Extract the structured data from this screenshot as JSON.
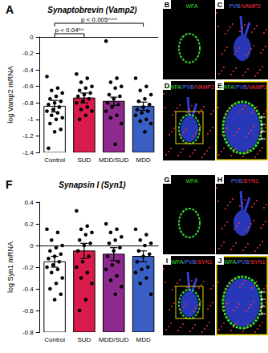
{
  "chart_data": [
    {
      "type": "bar",
      "panel": "A",
      "title": "Synaptobrevin (Vamp2)",
      "y_label": "log Vamp2 mRNA",
      "categories": [
        "Control",
        "SUD",
        "MDD/SUD",
        "MDD"
      ],
      "values": [
        -0.84,
        -0.74,
        -0.78,
        -0.84
      ],
      "errors": [
        0.07,
        0.06,
        0.05,
        0.05
      ],
      "colors": [
        "#ffffff",
        "#d81b4a",
        "#8e2a8e",
        "#3a5fc4"
      ],
      "points": [
        [
          -0.48,
          -0.62,
          -0.65,
          -0.68,
          -0.72,
          -0.75,
          -0.78,
          -0.8,
          -0.82,
          -0.85,
          -0.88,
          -0.9,
          -0.92,
          -0.95,
          -0.98,
          -1.0,
          -1.05,
          -1.12,
          -1.15,
          -1.35
        ],
        [
          -0.45,
          -0.5,
          -0.55,
          -0.6,
          -0.62,
          -0.65,
          -0.68,
          -0.7,
          -0.72,
          -0.75,
          -0.78,
          -0.8,
          -0.85,
          -0.88,
          -0.9,
          -0.95,
          -1.0
        ],
        [
          -0.05,
          -0.5,
          -0.55,
          -0.6,
          -0.62,
          -0.7,
          -0.72,
          -0.75,
          -0.8,
          -0.82,
          -0.85,
          -0.9,
          -0.95,
          -0.98,
          -1.05,
          -1.3
        ],
        [
          -0.5,
          -0.6,
          -0.65,
          -0.7,
          -0.75,
          -0.78,
          -0.82,
          -0.85,
          -0.88,
          -0.9,
          -0.92,
          -0.95,
          -1.0,
          -1.02,
          -1.05,
          -1.15
        ]
      ],
      "ylim": [
        -1.4,
        0
      ],
      "yticks": [
        -1.4,
        -1.2,
        -1,
        -0.8,
        -0.6,
        -0.4,
        -0.2,
        0
      ],
      "grid": false,
      "annotations": [
        {
          "from": "Control",
          "to": "SUD",
          "text": "p < 0.04*^"
        },
        {
          "from": "Control",
          "to": "MDD",
          "text": "p < 0.005^^^"
        }
      ]
    },
    {
      "type": "bar",
      "panel": "F",
      "title": "Synapsin I (Syn1)",
      "y_label": "log Syn1 mRNA",
      "categories": [
        "Control",
        "SUD",
        "MDD/SUD",
        "MDD"
      ],
      "values": [
        -0.15,
        -0.05,
        -0.08,
        -0.1
      ],
      "errors": [
        0.05,
        0.07,
        0.06,
        0.05
      ],
      "colors": [
        "#ffffff",
        "#d81b4a",
        "#8e2a8e",
        "#3a5fc4"
      ],
      "points": [
        [
          0.15,
          0.12,
          0.05,
          0.0,
          -0.02,
          -0.05,
          -0.08,
          -0.1,
          -0.12,
          -0.15,
          -0.18,
          -0.2,
          -0.22,
          -0.25,
          -0.3,
          -0.35,
          -0.4,
          -0.45,
          -0.5
        ],
        [
          0.32,
          0.18,
          0.15,
          0.12,
          0.1,
          0.05,
          0.02,
          0.0,
          -0.05,
          -0.1,
          -0.15,
          -0.2,
          -0.25,
          -0.3,
          -0.35,
          -0.5,
          -0.6
        ],
        [
          0.2,
          0.15,
          0.12,
          0.08,
          0.05,
          0.02,
          -0.02,
          -0.05,
          -0.1,
          -0.15,
          -0.18,
          -0.22,
          -0.28,
          -0.32,
          -0.38,
          -0.45
        ],
        [
          0.15,
          0.1,
          0.05,
          0.02,
          0.0,
          -0.05,
          -0.08,
          -0.1,
          -0.15,
          -0.2,
          -0.22,
          -0.25,
          -0.3,
          -0.35,
          -0.45
        ]
      ],
      "ylim": [
        -0.8,
        0.4
      ],
      "yticks": [
        -0.8,
        -0.6,
        -0.4,
        -0.2,
        0,
        0.2,
        0.4
      ],
      "grid": false
    }
  ],
  "panels": [
    {
      "letter": "B",
      "label": [
        {
          "text": "WFA",
          "color": "#33dd33"
        }
      ]
    },
    {
      "letter": "C",
      "label": [
        {
          "text": "PVB",
          "color": "#5577ff"
        },
        {
          "text": "/VAMP2",
          "color": "#ff3344"
        }
      ]
    },
    {
      "letter": "D",
      "label": [
        {
          "text": "WFA",
          "color": "#33dd33"
        },
        {
          "text": "/PVB",
          "color": "#5577ff"
        },
        {
          "text": "/VAMP2",
          "color": "#ff3344"
        }
      ]
    },
    {
      "letter": "E",
      "label": [
        {
          "text": "WFA",
          "color": "#33dd33"
        },
        {
          "text": "/PVB",
          "color": "#5577ff"
        },
        {
          "text": "/VAMP2",
          "color": "#ff3344"
        }
      ]
    },
    {
      "letter": "G",
      "label": [
        {
          "text": "WFA",
          "color": "#33dd33"
        }
      ]
    },
    {
      "letter": "H",
      "label": [
        {
          "text": "PVB",
          "color": "#5577ff"
        },
        {
          "text": "/SYN1",
          "color": "#ff3344"
        }
      ]
    },
    {
      "letter": "I",
      "label": [
        {
          "text": "WFA",
          "color": "#33dd33"
        },
        {
          "text": "/PVB",
          "color": "#5577ff"
        },
        {
          "text": "/SYN1",
          "color": "#ff3344"
        }
      ]
    },
    {
      "letter": "J",
      "label": [
        {
          "text": "WFA",
          "color": "#33dd33"
        },
        {
          "text": "/PVB",
          "color": "#5577ff"
        },
        {
          "text": "/SYN1",
          "color": "#ff3344"
        }
      ]
    }
  ]
}
